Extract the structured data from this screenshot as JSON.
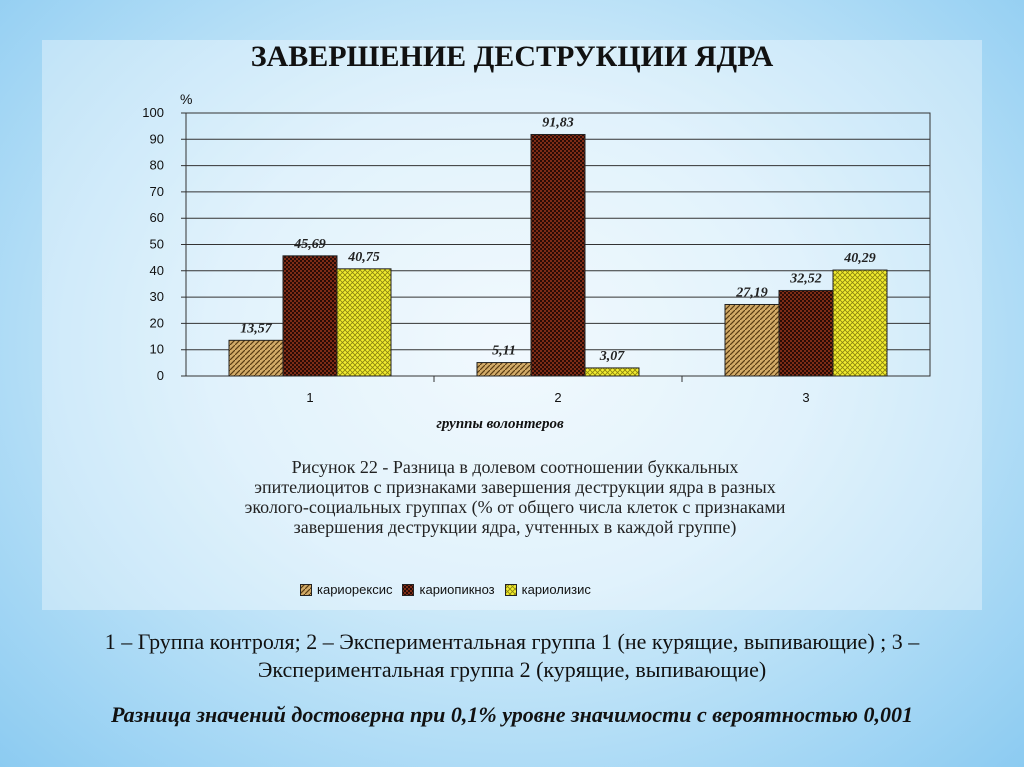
{
  "slide": {
    "title": "ЗАВЕРШЕНИЕ ДЕСТРУКЦИИ ЯДРА",
    "caption_lines": [
      "Рисунок 22 - Разница в долевом соотношении буккальных",
      "эпителиоцитов с признаками завершения деструкции ядра в разных",
      "эколого-социальных группах (% от общего числа клеток с признаками",
      "завершения деструкции ядра, учтенных в каждой группе)"
    ],
    "footnote_lines": [
      "1 – Группа контроля; 2 – Экспериментальная группа 1 (не курящие, выпивающие) ; 3 –",
      "Экспериментальная группа 2 (курящие, выпивающие)"
    ],
    "significance": "Разница значений достоверна при 0,1% уровне значимости с вероятностью 0,001"
  },
  "chart_data": {
    "type": "bar",
    "categories": [
      "1",
      "2",
      "3"
    ],
    "series": [
      {
        "name": "кариорексис",
        "values": [
          13.57,
          5.11,
          27.19
        ],
        "labels": [
          "13,57",
          "5,11",
          "27,19"
        ],
        "color": "#c9a15c"
      },
      {
        "name": "кариопикноз",
        "values": [
          45.69,
          91.83,
          32.52
        ],
        "labels": [
          "45,69",
          "91,83",
          "32,52"
        ],
        "color": "#7a2a14"
      },
      {
        "name": "кариолизис",
        "values": [
          40.75,
          3.07,
          40.29
        ],
        "labels": [
          "40,75",
          "3,07",
          "40,29"
        ],
        "color": "#e8e32a"
      }
    ],
    "xlabel": "группы волонтеров",
    "ylabel": "%",
    "ylim": [
      0,
      100
    ],
    "yticks": [
      0,
      10,
      20,
      30,
      40,
      50,
      60,
      70,
      80,
      90,
      100
    ],
    "grid": true,
    "legend": "bottom"
  }
}
